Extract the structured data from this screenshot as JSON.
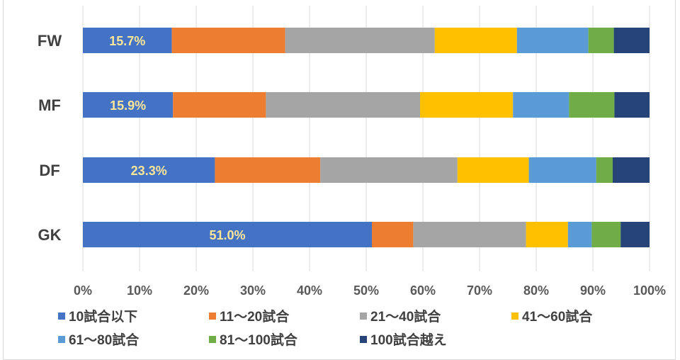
{
  "chart_data": {
    "type": "bar",
    "orientation": "horizontal",
    "stacked": "percent",
    "title": "",
    "categories": [
      "FW",
      "MF",
      "DF",
      "GK"
    ],
    "xlim": [
      0,
      100
    ],
    "x_ticks": [
      "0%",
      "10%",
      "20%",
      "30%",
      "40%",
      "50%",
      "60%",
      "70%",
      "80%",
      "90%",
      "100%"
    ],
    "grid": true,
    "legend_position": "bottom",
    "series": [
      {
        "name": "10試合以下",
        "color": "#4472C4",
        "values": [
          15.7,
          15.9,
          23.3,
          51.0
        ]
      },
      {
        "name": "11〜20試合",
        "color": "#ED7D31",
        "values": [
          20.0,
          16.4,
          18.6,
          7.3
        ]
      },
      {
        "name": "21〜40試合",
        "color": "#A5A5A5",
        "values": [
          26.4,
          27.2,
          24.2,
          19.9
        ]
      },
      {
        "name": "41〜60試合",
        "color": "#FFC000",
        "values": [
          14.5,
          16.4,
          12.6,
          7.4
        ]
      },
      {
        "name": "61〜80試合",
        "color": "#5B9BD5",
        "values": [
          12.6,
          9.9,
          11.9,
          4.2
        ]
      },
      {
        "name": "81〜100試合",
        "color": "#70AD47",
        "values": [
          4.5,
          8.0,
          2.9,
          5.1
        ]
      },
      {
        "name": "100試合越え",
        "color": "#264478",
        "values": [
          6.3,
          6.2,
          6.5,
          5.1
        ]
      }
    ],
    "data_labels": [
      "15.7%",
      "15.9%",
      "23.3%",
      "51.0%"
    ],
    "data_label_color": "#FFE699"
  }
}
